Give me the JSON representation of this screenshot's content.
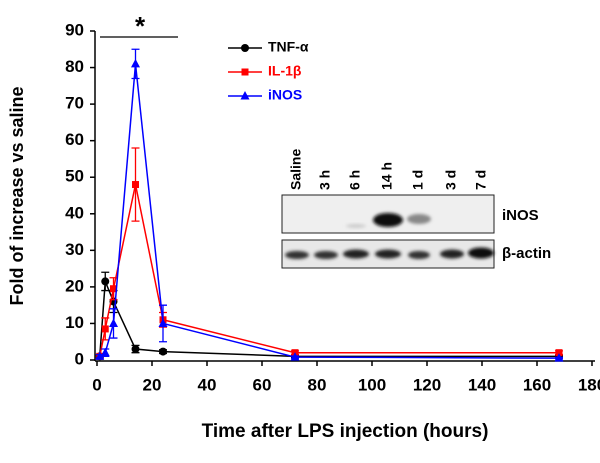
{
  "chart_data": {
    "type": "line",
    "xlabel": "Time after LPS injection (hours)",
    "ylabel": "Fold of increase vs saline",
    "x": [
      1,
      3,
      6,
      14,
      24,
      72,
      168
    ],
    "series": [
      {
        "name": "TNF-α",
        "color": "#000000",
        "marker": "circle",
        "values": [
          1,
          21.5,
          16,
          3,
          2.3,
          1,
          1
        ],
        "errors": [
          0.3,
          2.5,
          3,
          1,
          0.5,
          0.3,
          0.3
        ]
      },
      {
        "name": "IL-1β",
        "color": "#ff0000",
        "marker": "square",
        "values": [
          1,
          8.5,
          19.5,
          48,
          11,
          2,
          2
        ],
        "errors": [
          0.5,
          3,
          3,
          10,
          2,
          0.5,
          0.5
        ]
      },
      {
        "name": "iNOS",
        "color": "#0000ff",
        "marker": "triangle",
        "values": [
          1,
          2,
          10,
          81,
          10,
          0.8,
          0.5
        ],
        "errors": [
          0.5,
          1,
          4,
          4,
          5,
          0.3,
          0.2
        ]
      }
    ],
    "xlim": [
      0,
      180
    ],
    "xticks": [
      0,
      20,
      40,
      60,
      80,
      100,
      120,
      140,
      160,
      180
    ],
    "ylim": [
      0,
      90
    ],
    "yticks": [
      0,
      10,
      20,
      30,
      40,
      50,
      60,
      70,
      80,
      90
    ],
    "annotation": "*",
    "inset": {
      "lanes": [
        "Saline",
        "3 h",
        "6 h",
        "14 h",
        "1 d",
        "3 d",
        "7 d"
      ],
      "rows": [
        "iNOS",
        "β-actin"
      ]
    }
  }
}
